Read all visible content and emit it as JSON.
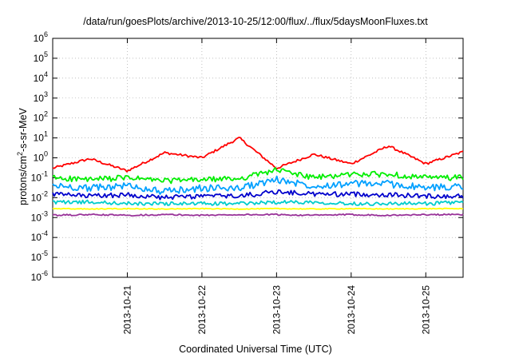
{
  "chart_data": {
    "type": "line",
    "title": "/data/run/goesPlots/archive/2013-10-25/12:00/flux/../flux/5daysMoonFluxes.txt",
    "xlabel": "Coordinated Universal Time (UTC)",
    "ylabel": {
      "pre": "protons/cm",
      "sup": "2",
      "post": "-s-sr-MeV"
    },
    "yscale": "log",
    "ylim": [
      1e-06,
      1000000.0
    ],
    "xlim": [
      "2013-10-20T00:00",
      "2013-10-25T12:00"
    ],
    "grid": true,
    "x_tick_labels": [
      "2013-10-21",
      "2013-10-22",
      "2013-10-23",
      "2013-10-24",
      "2013-10-25"
    ],
    "y_tick_labels": [
      {
        "base": "10",
        "exp": "-6"
      },
      {
        "base": "10",
        "exp": "-5"
      },
      {
        "base": "10",
        "exp": "-4"
      },
      {
        "base": "10",
        "exp": "-3"
      },
      {
        "base": "10",
        "exp": "-2"
      },
      {
        "base": "10",
        "exp": "-1"
      },
      {
        "base": "10",
        "exp": "0"
      },
      {
        "base": "10",
        "exp": "1"
      },
      {
        "base": "10",
        "exp": "2"
      },
      {
        "base": "10",
        "exp": "3"
      },
      {
        "base": "10",
        "exp": "4"
      },
      {
        "base": "10",
        "exp": "5"
      },
      {
        "base": "10",
        "exp": "6"
      }
    ],
    "x": [
      "2013-10-20T00:00",
      "2013-10-20T12:00",
      "2013-10-21T00:00",
      "2013-10-21T12:00",
      "2013-10-22T00:00",
      "2013-10-22T12:00",
      "2013-10-23T00:00",
      "2013-10-23T12:00",
      "2013-10-24T00:00",
      "2013-10-24T12:00",
      "2013-10-25T00:00",
      "2013-10-25T12:00"
    ],
    "series": [
      {
        "color": "#ff0000",
        "values": [
          0.3,
          0.9,
          0.22,
          1.8,
          1.0,
          10,
          0.3,
          1.5,
          0.5,
          4,
          0.5,
          2.0
        ]
      },
      {
        "color": "#00ee00",
        "values": [
          0.1,
          0.08,
          0.1,
          0.07,
          0.08,
          0.09,
          0.25,
          0.1,
          0.15,
          0.15,
          0.1,
          0.1
        ]
      },
      {
        "color": "#00a0ff",
        "values": [
          0.04,
          0.03,
          0.04,
          0.02,
          0.03,
          0.03,
          0.08,
          0.04,
          0.05,
          0.05,
          0.03,
          0.04
        ]
      },
      {
        "color": "#0000cc",
        "values": [
          0.015,
          0.012,
          0.014,
          0.01,
          0.012,
          0.012,
          0.02,
          0.015,
          0.015,
          0.014,
          0.012,
          0.012
        ]
      },
      {
        "color": "#00cccc",
        "values": [
          0.006,
          0.006,
          0.005,
          0.005,
          0.005,
          0.005,
          0.006,
          0.006,
          0.005,
          0.005,
          0.005,
          0.006
        ]
      },
      {
        "color": "#ffff00",
        "values": [
          0.0028,
          0.0027,
          0.0028,
          0.0027,
          0.0028,
          0.0027,
          0.0028,
          0.0027,
          0.0028,
          0.0027,
          0.0028,
          0.0028
        ]
      },
      {
        "color": "#993399",
        "values": [
          0.0013,
          0.0014,
          0.0013,
          0.0014,
          0.0013,
          0.0014,
          0.0014,
          0.0013,
          0.0014,
          0.0013,
          0.0014,
          0.0014
        ]
      }
    ]
  }
}
